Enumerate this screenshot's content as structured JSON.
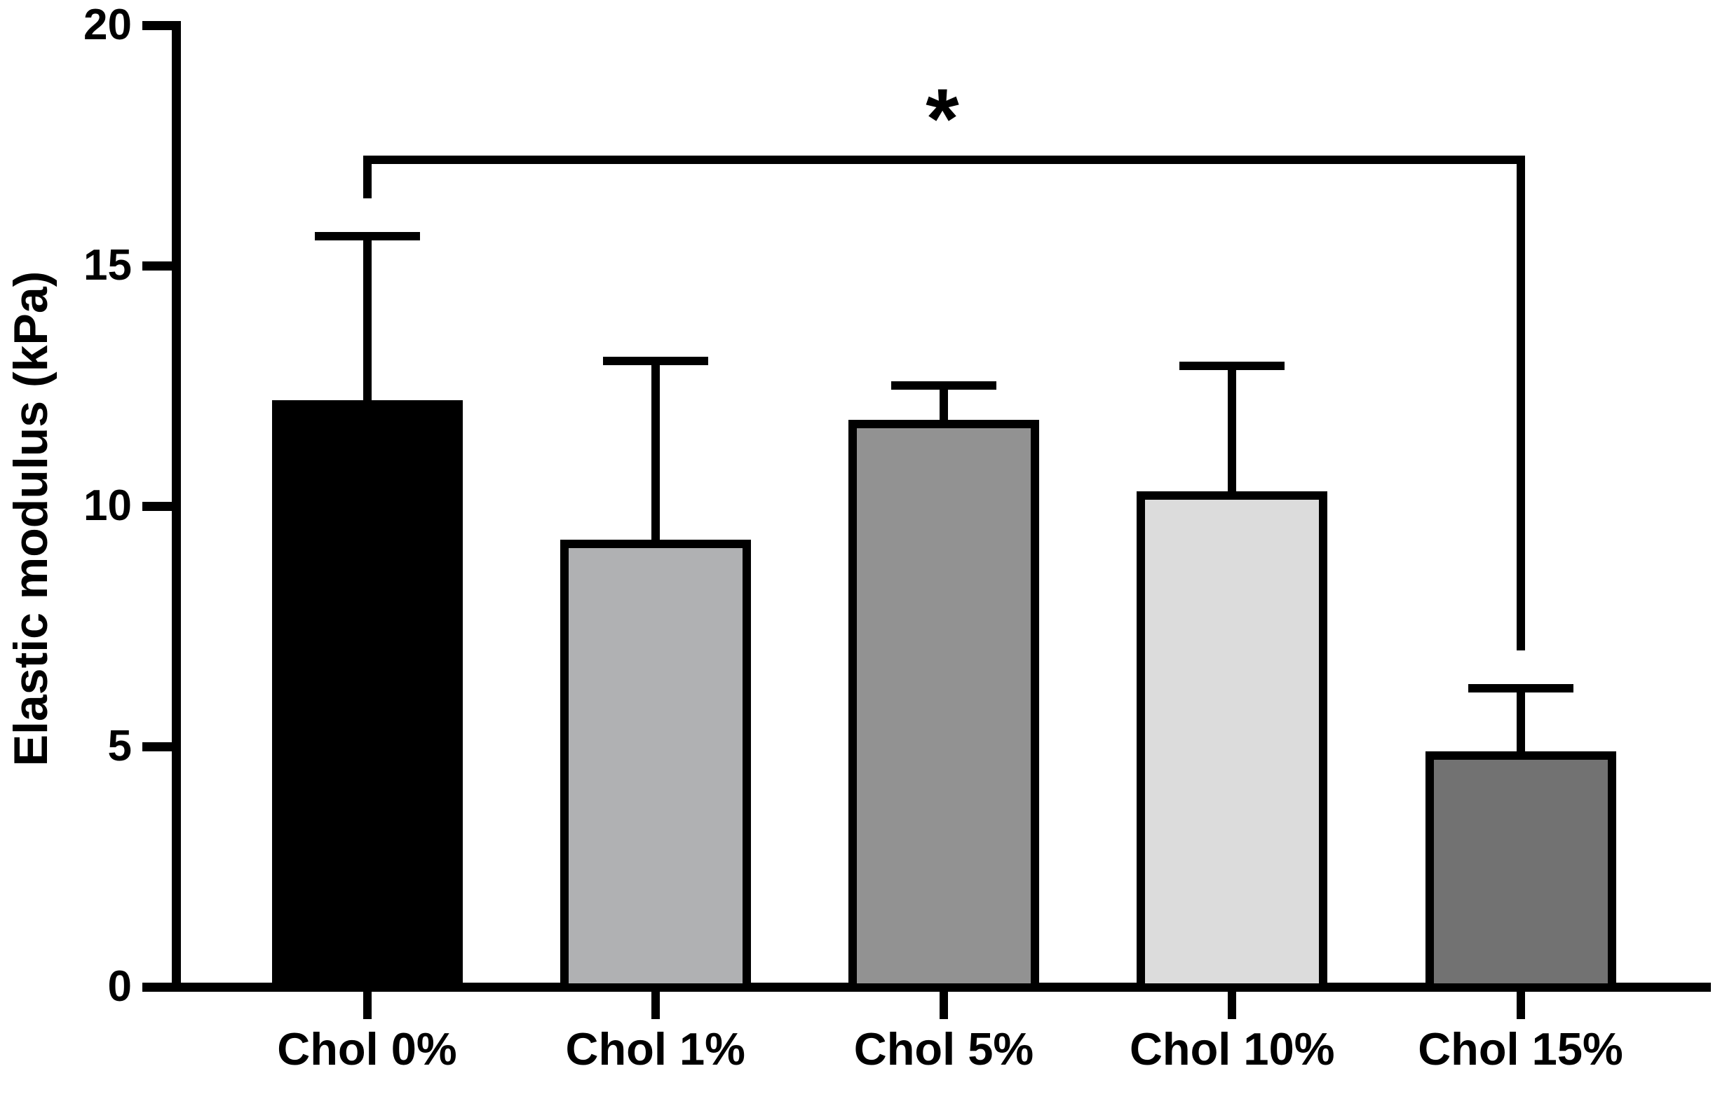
{
  "figure": {
    "background": "#ffffff",
    "text_color": "#000000"
  },
  "chart_data": {
    "type": "bar",
    "title": "",
    "xlabel": "",
    "ylabel": "Elastic modulus (kPa)",
    "ylim": [
      0,
      20
    ],
    "yticks": [
      0,
      5,
      10,
      15,
      20
    ],
    "grid": false,
    "legend": false,
    "categories": [
      "Chol 0%",
      "Chol 1%",
      "Chol 5%",
      "Chol 10%",
      "Chol 15%"
    ],
    "series": [
      {
        "name": "Elastic modulus",
        "values": [
          12.2,
          9.3,
          11.8,
          10.3,
          4.9
        ],
        "error_upper_sd": [
          3.5,
          3.8,
          0.8,
          2.7,
          1.4
        ],
        "error_bar_tops": [
          15.7,
          13.1,
          12.6,
          13.0,
          6.3
        ]
      }
    ],
    "bar_colors": [
      "#000000",
      "#b0b1b3",
      "#929292",
      "#dcdcdc",
      "#727272"
    ],
    "bar_border_color": "#000000",
    "axis_color": "#000000",
    "significance": {
      "label": "*",
      "from_category": "Chol 0%",
      "to_category": "Chol 15%",
      "from_index": 0,
      "to_index": 4,
      "line_y_value": 17.2,
      "left_tick_bottom_value": 16.4,
      "right_tick_bottom_value": 7.0
    }
  }
}
